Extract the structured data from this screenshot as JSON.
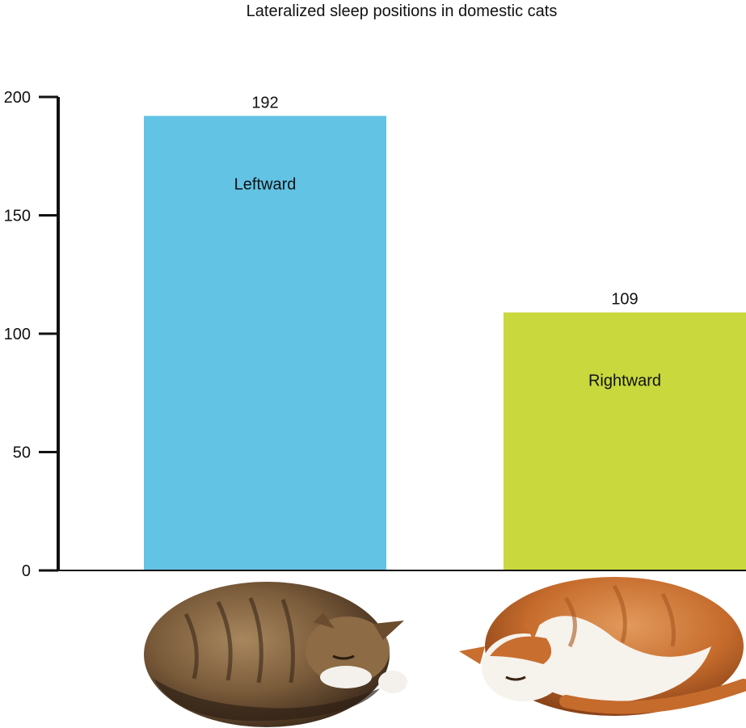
{
  "chart_data": {
    "type": "bar",
    "title": "Lateralized sleep positions in domestic cats",
    "xlabel": "",
    "ylabel": "",
    "categories": [
      "Leftward",
      "Rightward"
    ],
    "values": [
      192,
      109
    ],
    "data_labels": [
      "192",
      "109"
    ],
    "colors": [
      "#62c3e5",
      "#c8d83d"
    ],
    "ylim": [
      0,
      200
    ],
    "yticks": [
      0,
      50,
      100,
      150,
      200
    ],
    "grid": false,
    "legend": "none",
    "category_label_position": "inside bar, near top",
    "illustrations": [
      {
        "category": "Leftward",
        "description": "tabby cat sleeping curled, head toward right"
      },
      {
        "category": "Rightward",
        "description": "orange and white cat sleeping curled, head toward left"
      }
    ]
  }
}
